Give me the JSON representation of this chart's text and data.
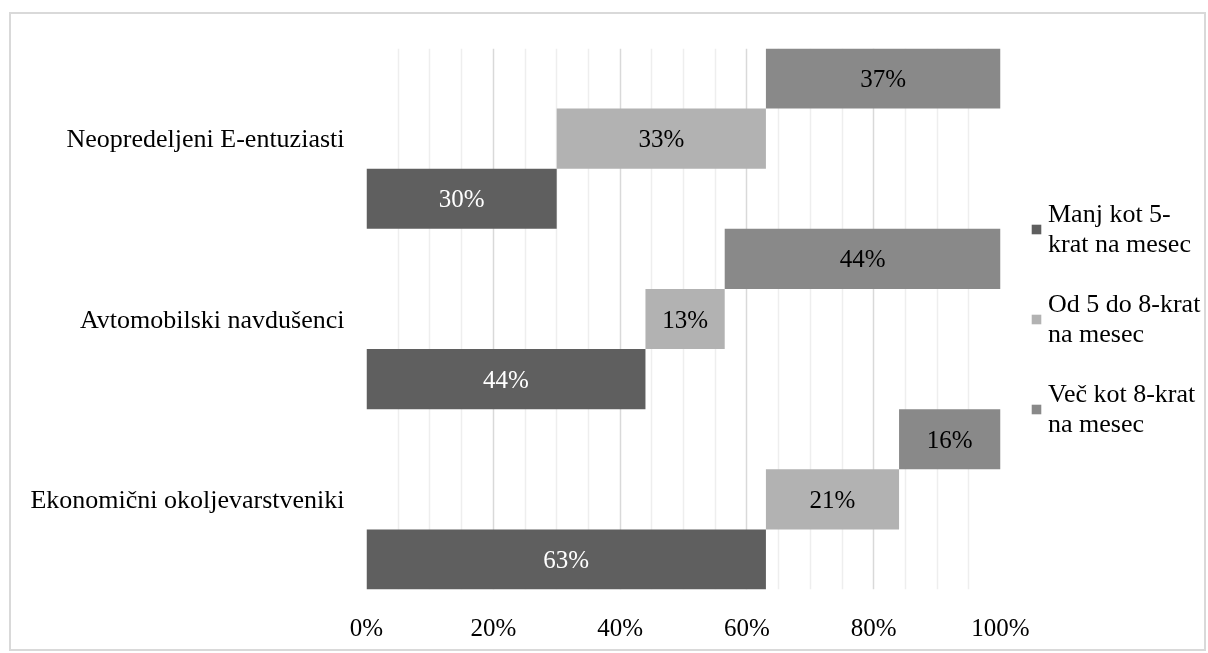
{
  "chart_data": {
    "type": "bar",
    "orientation": "horizontal",
    "stacked": true,
    "categories": [
      "Neopredeljeni E-entuziasti",
      "Avtomobilski navdušenci",
      "Ekonomični okoljevarstveniki"
    ],
    "series": [
      {
        "name": "Manj kot 5-krat na mesec",
        "color": "#5f5f5f",
        "values": [
          30,
          44,
          63
        ],
        "value_labels": [
          "30%",
          "44%",
          "63%"
        ]
      },
      {
        "name": "Od 5 do 8-krat na mesec",
        "color": "#b2b2b2",
        "values": [
          33,
          12.5,
          21
        ],
        "value_labels": [
          "33%",
          "13%",
          "21%"
        ]
      },
      {
        "name": "Več kot 8-krat na mesec",
        "color": "#898989",
        "values": [
          37,
          43.5,
          16
        ],
        "value_labels": [
          "37%",
          "44%",
          "16%"
        ]
      }
    ],
    "xlim": [
      0,
      100
    ],
    "xticks": [
      {
        "value": 0,
        "label": "0%"
      },
      {
        "value": 5,
        "label": null
      },
      {
        "value": 10,
        "label": null
      },
      {
        "value": 15,
        "label": null
      },
      {
        "value": 20,
        "label": "20%"
      },
      {
        "value": 25,
        "label": null
      },
      {
        "value": 30,
        "label": null
      },
      {
        "value": 35,
        "label": null
      },
      {
        "value": 40,
        "label": "40%"
      },
      {
        "value": 45,
        "label": null
      },
      {
        "value": 50,
        "label": null
      },
      {
        "value": 55,
        "label": null
      },
      {
        "value": 60,
        "label": "60%"
      },
      {
        "value": 65,
        "label": null
      },
      {
        "value": 70,
        "label": null
      },
      {
        "value": 75,
        "label": null
      },
      {
        "value": 80,
        "label": "80%"
      },
      {
        "value": 85,
        "label": null
      },
      {
        "value": 90,
        "label": null
      },
      {
        "value": 95,
        "label": null
      },
      {
        "value": 100,
        "label": "100%"
      }
    ],
    "grid": "x",
    "legend": "right"
  }
}
